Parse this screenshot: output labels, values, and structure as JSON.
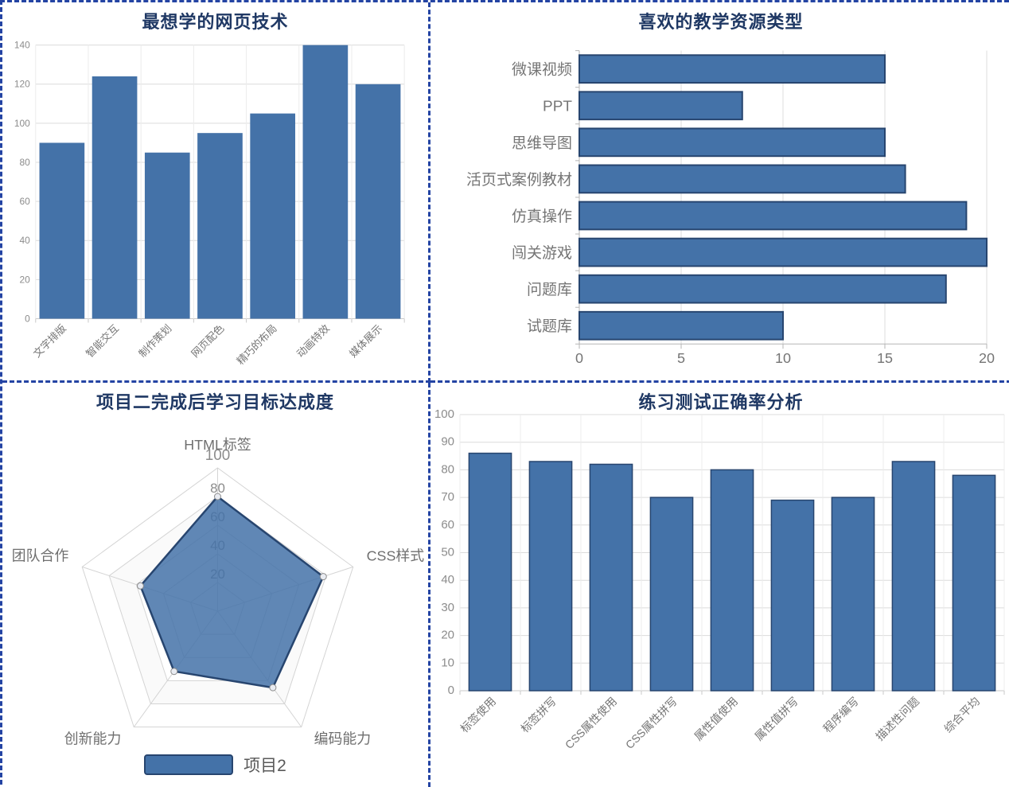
{
  "colors": {
    "panel_border": "#2444a3",
    "title": "#1f3864",
    "bar_fill": "#4472a8",
    "bar_border": "#27456f",
    "radar_fill": "#4472a8",
    "radar_fill_opacity": 0.85,
    "tick_text": "#8c8c8c",
    "category_text": "#757575"
  },
  "chart_data": [
    {
      "type": "bar",
      "title": "最想学的网页技术",
      "categories": [
        "文字排版",
        "智能交互",
        "制作策划",
        "网页配色",
        "精巧的布局",
        "动画特效",
        "媒体展示"
      ],
      "values": [
        90,
        124,
        85,
        95,
        105,
        140,
        120
      ],
      "xlabel": "",
      "ylabel": "",
      "ylim": [
        0,
        140
      ],
      "ytick_step": 20,
      "grid": true,
      "label_rotation": -45,
      "legend": "none"
    },
    {
      "type": "bar",
      "orientation": "horizontal",
      "title": "喜欢的教学资源类型",
      "categories": [
        "微课视频",
        "PPT",
        "思维导图",
        "活页式案例教材",
        "仿真操作",
        "闯关游戏",
        "问题库",
        "试题库"
      ],
      "values": [
        15,
        8,
        15,
        16,
        19,
        20,
        18,
        10
      ],
      "xlabel": "",
      "ylabel": "",
      "xlim": [
        0,
        20
      ],
      "xtick_step": 5,
      "grid": true,
      "legend": "none"
    },
    {
      "type": "radar",
      "title": "项目二完成后学习目标达成度",
      "axes": [
        "HTML标签",
        "CSS样式",
        "编码能力",
        "创新能力",
        "团队合作"
      ],
      "series": [
        {
          "name": "项目2",
          "values": [
            80,
            78,
            66,
            52,
            57
          ]
        }
      ],
      "max": 100,
      "tick_step": 20,
      "tick_labels": [
        "20",
        "40",
        "60",
        "80",
        "100"
      ],
      "legend_position": "bottom"
    },
    {
      "type": "bar",
      "title": "练习测试正确率分析",
      "categories": [
        "标签使用",
        "标签拼写",
        "CSS属性使用",
        "CSS属性拼写",
        "属性值使用",
        "属性值拼写",
        "程序编写",
        "描述性问题",
        "综合平均"
      ],
      "values": [
        86,
        83,
        82,
        70,
        80,
        69,
        70,
        83,
        78
      ],
      "xlabel": "",
      "ylabel": "",
      "ylim": [
        0,
        100
      ],
      "ytick_step": 10,
      "grid": true,
      "label_rotation": -45,
      "legend": "none"
    }
  ]
}
